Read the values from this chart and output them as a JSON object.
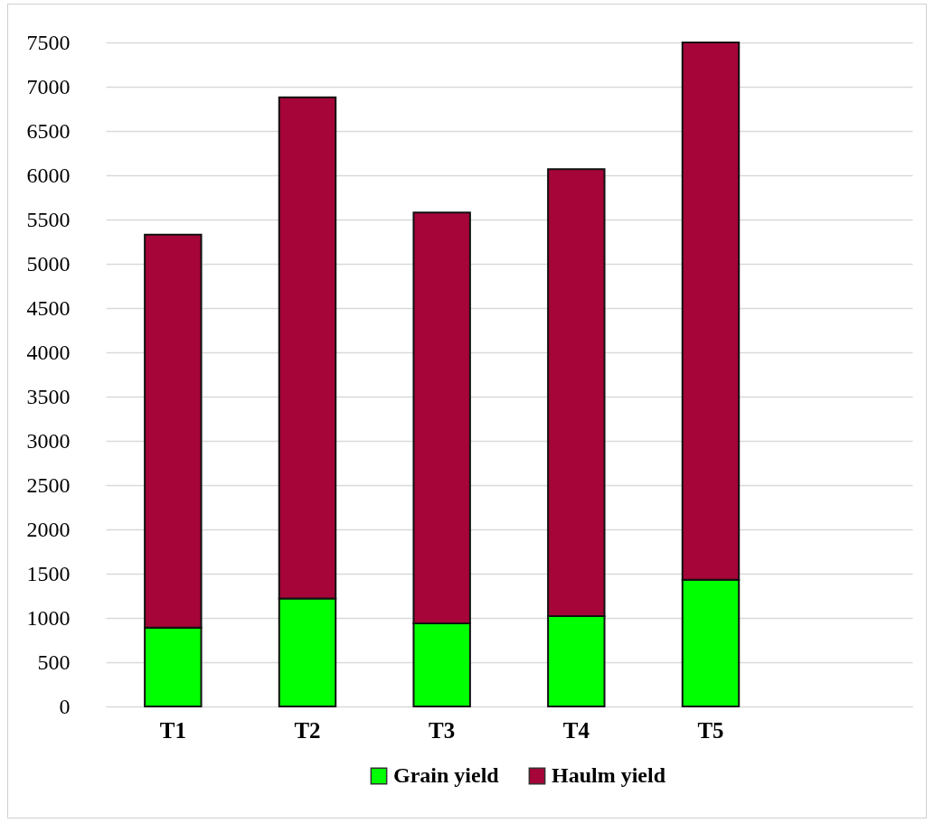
{
  "chart_data": {
    "type": "bar",
    "stacked": true,
    "categories": [
      "T1",
      "T2",
      "T3",
      "T4",
      "T5",
      null
    ],
    "series": [
      {
        "name": "Grain yield",
        "color": "#00ff00",
        "values": [
          890,
          1220,
          940,
          1020,
          1430,
          null
        ]
      },
      {
        "name": "Haulm yield",
        "color": "#a50538",
        "values": [
          4440,
          5660,
          4640,
          5050,
          6070,
          null
        ]
      }
    ],
    "ylim": [
      0,
      7500
    ],
    "yticks": [
      0,
      500,
      1000,
      1500,
      2000,
      2500,
      3000,
      3500,
      4000,
      4500,
      5000,
      5500,
      6000,
      6500,
      7000,
      7500
    ],
    "grid": "y",
    "legend": "bottom"
  }
}
